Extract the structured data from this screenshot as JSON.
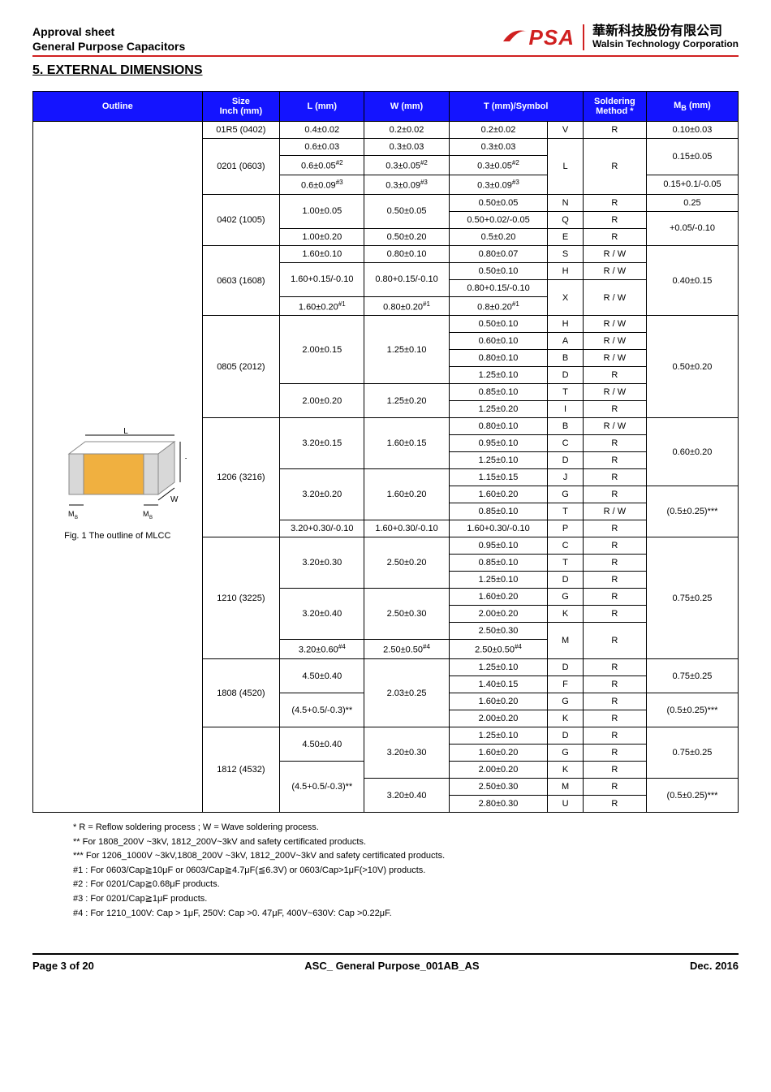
{
  "header": {
    "title1": "Approval sheet",
    "title2": "General Purpose Capacitors",
    "logo_text": "PSA",
    "company_cn": "華新科技股份有限公司",
    "company_en": "Walsin Technology Corporation"
  },
  "section_title": "5. EXTERNAL DIMENSIONS",
  "columns": {
    "outline": "Outline",
    "size": "Size\nInch (mm)",
    "l": "L (mm)",
    "w": "W (mm)",
    "t": "T (mm)/Symbol",
    "soldering": "Soldering Method *",
    "mb": "M_B (mm)"
  },
  "outline_caption": "Fig. 1 The outline of MLCC",
  "outline_labels": {
    "L": "L",
    "W": "W",
    "T": "T",
    "MB": "M_B"
  },
  "rows": [
    {
      "size": "01R5 (0402)",
      "l": "0.4±0.02",
      "w": "0.2±0.02",
      "t": "0.2±0.02",
      "sym": "V",
      "sold": "R",
      "mb": "0.10±0.03"
    },
    {
      "size": "0201 (0603)",
      "size_rs": 3,
      "l": "0.6±0.03",
      "w": "0.3±0.03",
      "t": "0.3±0.03",
      "sym": "L",
      "sym_rs": 3,
      "sold": "R",
      "sold_rs": 3,
      "mb": "0.15±0.05",
      "mb_rs": 2
    },
    {
      "l": "0.6±0.05^#2",
      "w": "0.3±0.05^#2",
      "t": "0.3±0.05^#2"
    },
    {
      "l": "0.6±0.09^#3",
      "w": "0.3±0.09^#3",
      "t": "0.3±0.09^#3",
      "mb": "0.15+0.1/-0.05"
    },
    {
      "size": "0402 (1005)",
      "size_rs": 3,
      "l": "1.00±0.05",
      "l_rs": 2,
      "w": "0.50±0.05",
      "w_rs": 2,
      "t": "0.50±0.05",
      "sym": "N",
      "sold": "R",
      "mb": "0.25"
    },
    {
      "t": "0.50+0.02/-0.05",
      "sym": "Q",
      "sold": "R",
      "mb": "+0.05/-0.10",
      "mb_rs": 2
    },
    {
      "l": "1.00±0.20",
      "w": "0.50±0.20",
      "t": "0.5±0.20",
      "sym": "E",
      "sold": "R"
    },
    {
      "size": "0603 (1608)",
      "size_rs": 4,
      "l": "1.60±0.10",
      "w": "0.80±0.10",
      "t": "0.80±0.07",
      "sym": "S",
      "sold": "R / W",
      "mb": "0.40±0.15",
      "mb_rs": 4
    },
    {
      "l": "1.60+0.15/-0.10",
      "l_rs": 2,
      "w": "0.80+0.15/-0.10",
      "w_rs": 2,
      "t": "0.50±0.10",
      "sym": "H",
      "sold": "R / W"
    },
    {
      "t": "0.80+0.15/-0.10",
      "sym": "X",
      "sym_rs": 2,
      "sold": "R / W",
      "sold_rs": 2
    },
    {
      "l": "1.60±0.20^#1",
      "w": "0.80±0.20^#1",
      "t": "0.8±0.20^#1"
    },
    {
      "size": "0805 (2012)",
      "size_rs": 6,
      "l": "2.00±0.15",
      "l_rs": 4,
      "w": "1.25±0.10",
      "w_rs": 4,
      "t": "0.50±0.10",
      "sym": "H",
      "sold": "R / W",
      "mb": "0.50±0.20",
      "mb_rs": 6
    },
    {
      "t": "0.60±0.10",
      "sym": "A",
      "sold": "R / W"
    },
    {
      "t": "0.80±0.10",
      "sym": "B",
      "sold": "R / W"
    },
    {
      "t": "1.25±0.10",
      "sym": "D",
      "sold": "R"
    },
    {
      "l": "2.00±0.20",
      "l_rs": 2,
      "w": "1.25±0.20",
      "w_rs": 2,
      "t": "0.85±0.10",
      "sym": "T",
      "sold": "R / W"
    },
    {
      "t": "1.25±0.20",
      "sym": "I",
      "sold": "R"
    },
    {
      "size": "1206 (3216)",
      "size_rs": 7,
      "l": "3.20±0.15",
      "l_rs": 3,
      "w": "1.60±0.15",
      "w_rs": 3,
      "t": "0.80±0.10",
      "sym": "B",
      "sold": "R / W",
      "mb": "0.60±0.20",
      "mb_rs": 4
    },
    {
      "t": "0.95±0.10",
      "sym": "C",
      "sold": "R"
    },
    {
      "t": "1.25±0.10",
      "sym": "D",
      "sold": "R"
    },
    {
      "l": "3.20±0.20",
      "l_rs": 3,
      "w": "1.60±0.20",
      "w_rs": 3,
      "t": "1.15±0.15",
      "sym": "J",
      "sold": "R"
    },
    {
      "t": "1.60±0.20",
      "sym": "G",
      "sold": "R",
      "mb": "(0.5±0.25)***",
      "mb_rs": 3
    },
    {
      "t": "0.85±0.10",
      "sym": "T",
      "sold": "R / W"
    },
    {
      "l": "3.20+0.30/-0.10",
      "w": "1.60+0.30/-0.10",
      "t": "1.60+0.30/-0.10",
      "sym": "P",
      "sold": "R"
    },
    {
      "size": "1210 (3225)",
      "size_rs": 7,
      "l": "3.20±0.30",
      "l_rs": 3,
      "w": "2.50±0.20",
      "w_rs": 3,
      "t": "0.95±0.10",
      "sym": "C",
      "sold": "R",
      "mb": "0.75±0.25",
      "mb_rs": 7
    },
    {
      "t": "0.85±0.10",
      "sym": "T",
      "sold": "R"
    },
    {
      "t": "1.25±0.10",
      "sym": "D",
      "sold": "R"
    },
    {
      "l": "3.20±0.40",
      "l_rs": 3,
      "w": "2.50±0.30",
      "w_rs": 3,
      "t": "1.60±0.20",
      "sym": "G",
      "sold": "R"
    },
    {
      "t": "2.00±0.20",
      "sym": "K",
      "sold": "R"
    },
    {
      "t": "2.50±0.30",
      "sym": "M",
      "sym_rs": 2,
      "sold": "R",
      "sold_rs": 2
    },
    {
      "l": "3.20±0.60^#4",
      "w": "2.50±0.50^#4",
      "t": "2.50±0.50^#4"
    },
    {
      "size": "1808 (4520)",
      "size_rs": 4,
      "l": "4.50±0.40",
      "l_rs": 2,
      "w": "2.03±0.25",
      "w_rs": 4,
      "t": "1.25±0.10",
      "sym": "D",
      "sold": "R",
      "mb": "0.75±0.25",
      "mb_rs": 2
    },
    {
      "t": "1.40±0.15",
      "sym": "F",
      "sold": "R"
    },
    {
      "l": "(4.5+0.5/-0.3)**",
      "l_rs": 2,
      "t": "1.60±0.20",
      "sym": "G",
      "sold": "R",
      "mb": "(0.5±0.25)***",
      "mb_rs": 2
    },
    {
      "t": "2.00±0.20",
      "sym": "K",
      "sold": "R"
    },
    {
      "size": "1812 (4532)",
      "size_rs": 5,
      "l": "4.50±0.40",
      "l_rs": 2,
      "w": "3.20±0.30",
      "w_rs": 3,
      "t": "1.25±0.10",
      "sym": "D",
      "sold": "R",
      "mb": "0.75±0.25",
      "mb_rs": 3
    },
    {
      "t": "1.60±0.20",
      "sym": "G",
      "sold": "R"
    },
    {
      "l": "(4.5+0.5/-0.3)**",
      "l_rs": 3,
      "t": "2.00±0.20",
      "sym": "K",
      "sold": "R"
    },
    {
      "w": "3.20±0.40",
      "w_rs": 2,
      "t": "2.50±0.30",
      "sym": "M",
      "sold": "R",
      "mb": "(0.5±0.25)***",
      "mb_rs": 2
    },
    {
      "t": "2.80±0.30",
      "sym": "U",
      "sold": "R"
    }
  ],
  "notes": [
    "* R = Reflow soldering process ; W = Wave soldering process.",
    "** For 1808_200V ~3kV, 1812_200V~3kV and safety certificated products.",
    "*** For 1206_1000V ~3kV,1808_200V ~3kV, 1812_200V~3kV and safety certificated products.",
    "#1 : For 0603/Cap≧10μF or 0603/Cap≧4.7μF(≦6.3V) or 0603/Cap>1μF(>10V) products.",
    "#2 : For 0201/Cap≧0.68μF products.",
    "#3 : For 0201/Cap≧1μF products.",
    "#4 : For 1210_100V: Cap > 1μF, 250V: Cap >0. 47μF, 400V~630V: Cap >0.22μF."
  ],
  "footer": {
    "page": "Page 3 of 20",
    "doc": "ASC_ General Purpose_001AB_AS",
    "date": "Dec. 2016"
  },
  "colors": {
    "header_bg": "#1414ff",
    "brand": "#d02020",
    "mlcc_body": "#f0b040",
    "mlcc_term": "#d8d8d8"
  },
  "col_widths_pct": [
    24,
    11,
    12,
    12,
    14,
    5,
    9,
    13
  ]
}
